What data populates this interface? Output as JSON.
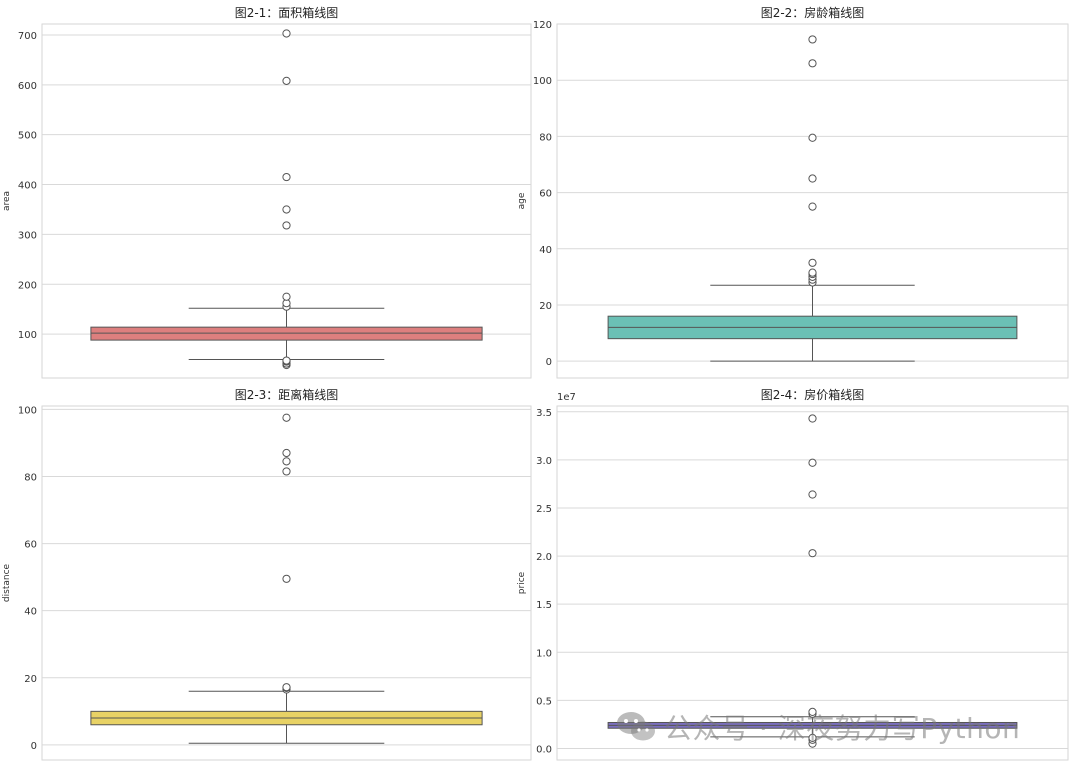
{
  "chart_data": [
    {
      "type": "boxplot",
      "title": "图2-1：面积箱线图",
      "ylabel": "area",
      "ylim": [
        12,
        722
      ],
      "yticks": [
        100,
        200,
        300,
        400,
        500,
        600,
        700
      ],
      "box": {
        "whisker_low": 49,
        "q1": 88,
        "median": 102,
        "q3": 114,
        "whisker_high": 152
      },
      "outliers": [
        38,
        41,
        45,
        47,
        155,
        162,
        175,
        318,
        350,
        415,
        608,
        703
      ],
      "color": "#dd7f7e",
      "grid": true
    },
    {
      "type": "boxplot",
      "title": "图2-2：房龄箱线图",
      "ylabel": "age",
      "ylim": [
        -6,
        120
      ],
      "yticks": [
        0,
        20,
        40,
        60,
        80,
        100,
        120
      ],
      "box": {
        "whisker_low": 0,
        "q1": 8,
        "median": 12,
        "q3": 16,
        "whisker_high": 27
      },
      "outliers": [
        28,
        29,
        30,
        31,
        31.5,
        35,
        55,
        65,
        79.5,
        106,
        114.5
      ],
      "color": "#6bc0b5",
      "grid": true
    },
    {
      "type": "boxplot",
      "title": "图2-3：距离箱线图",
      "ylabel": "distance",
      "ylim": [
        -4.5,
        101
      ],
      "yticks": [
        0,
        20,
        40,
        60,
        80,
        100
      ],
      "box": {
        "whisker_low": 0.5,
        "q1": 6,
        "median": 8,
        "q3": 10,
        "whisker_high": 16
      },
      "outliers": [
        16.5,
        17,
        17.2,
        49.5,
        81.5,
        84.5,
        87,
        97.5
      ],
      "color": "#e8d265",
      "grid": true
    },
    {
      "type": "boxplot",
      "title": "图2-4：房价箱线图",
      "ylabel": "price",
      "scale_label": "1e7",
      "ylim": [
        -0.12,
        3.56
      ],
      "yticks": [
        0.0,
        0.5,
        1.0,
        1.5,
        2.0,
        2.5,
        3.0,
        3.5
      ],
      "box": {
        "whisker_low": 0.12,
        "q1": 0.21,
        "median": 0.24,
        "q3": 0.27,
        "whisker_high": 0.33
      },
      "outliers": [
        0.05,
        0.09,
        0.11,
        0.36,
        0.38,
        2.03,
        2.64,
        2.97,
        3.43
      ],
      "color": "#7b6fbf",
      "grid": true
    }
  ],
  "watermark": {
    "text": "公众号 · 深夜努力写Python"
  }
}
